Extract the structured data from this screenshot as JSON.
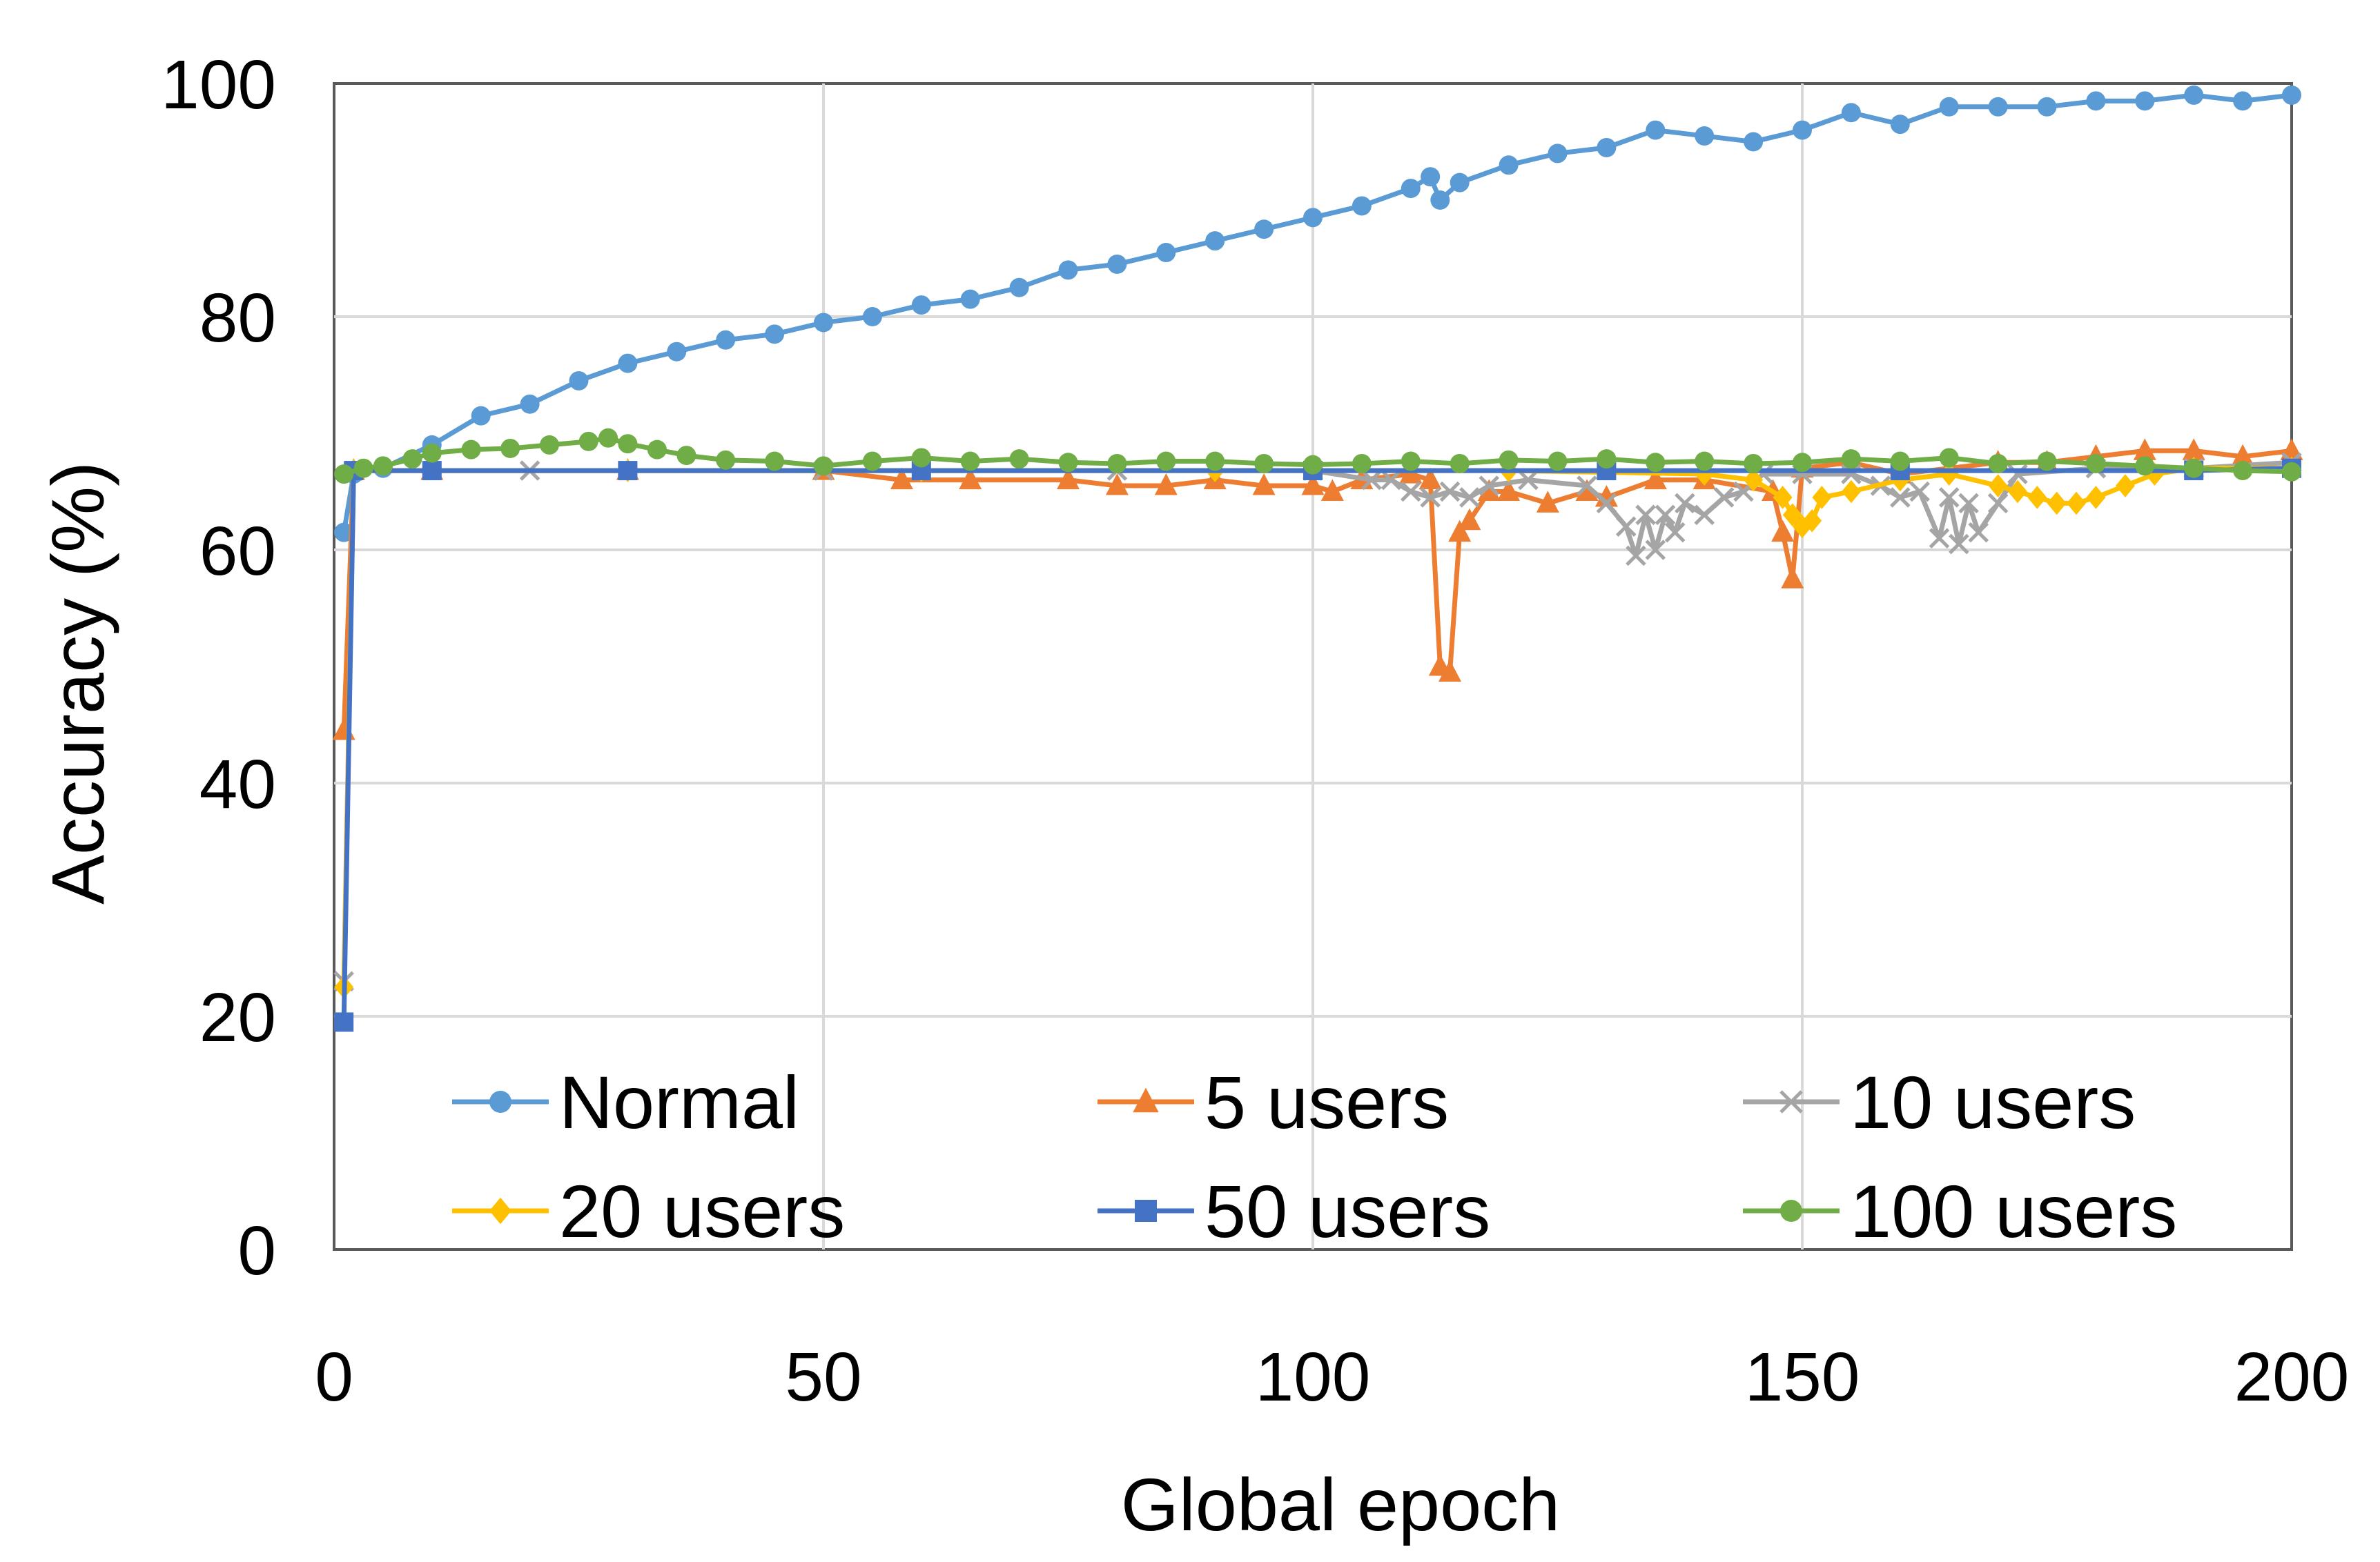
{
  "chart_data": {
    "type": "line",
    "title": "",
    "xlabel": "Global epoch",
    "ylabel": "Accuracy (%)",
    "xlim": [
      0,
      200
    ],
    "ylim": [
      0,
      100
    ],
    "x_ticks": [
      0,
      50,
      100,
      150,
      200
    ],
    "y_ticks": [
      0,
      20,
      40,
      60,
      80,
      100
    ],
    "grid": true,
    "legend_position": "bottom, inside plot area, 3 columns",
    "series": [
      {
        "name": "Normal",
        "color": "#5B9BD5",
        "marker": "circle",
        "points": [
          [
            1,
            61.5
          ],
          [
            2,
            66.5
          ],
          [
            5,
            67
          ],
          [
            10,
            69
          ],
          [
            15,
            71.5
          ],
          [
            20,
            72.5
          ],
          [
            25,
            74.5
          ],
          [
            30,
            76
          ],
          [
            35,
            77
          ],
          [
            40,
            78
          ],
          [
            45,
            78.5
          ],
          [
            50,
            79.5
          ],
          [
            55,
            80
          ],
          [
            60,
            81
          ],
          [
            65,
            81.5
          ],
          [
            70,
            82.5
          ],
          [
            75,
            84
          ],
          [
            80,
            84.5
          ],
          [
            85,
            85.5
          ],
          [
            90,
            86.5
          ],
          [
            95,
            87.5
          ],
          [
            100,
            88.5
          ],
          [
            105,
            89.5
          ],
          [
            110,
            91
          ],
          [
            112,
            92
          ],
          [
            113,
            90
          ],
          [
            115,
            91.5
          ],
          [
            120,
            93
          ],
          [
            125,
            94
          ],
          [
            130,
            94.5
          ],
          [
            135,
            96
          ],
          [
            140,
            95.5
          ],
          [
            145,
            95
          ],
          [
            150,
            96
          ],
          [
            155,
            97.5
          ],
          [
            160,
            96.5
          ],
          [
            165,
            98
          ],
          [
            170,
            98
          ],
          [
            175,
            98
          ],
          [
            180,
            98.5
          ],
          [
            185,
            98.5
          ],
          [
            190,
            99
          ],
          [
            195,
            98.5
          ],
          [
            200,
            99
          ]
        ]
      },
      {
        "name": "5 users",
        "color": "#ED7D31",
        "marker": "triangle",
        "points": [
          [
            1,
            44.5
          ],
          [
            2,
            66.8
          ],
          [
            10,
            66.8
          ],
          [
            30,
            66.8
          ],
          [
            50,
            66.8
          ],
          [
            58,
            66
          ],
          [
            65,
            66
          ],
          [
            75,
            66
          ],
          [
            80,
            65.5
          ],
          [
            85,
            65.5
          ],
          [
            90,
            66
          ],
          [
            95,
            65.5
          ],
          [
            100,
            65.5
          ],
          [
            102,
            65
          ],
          [
            105,
            66
          ],
          [
            110,
            66.5
          ],
          [
            112,
            66
          ],
          [
            113,
            50
          ],
          [
            114,
            49.5
          ],
          [
            115,
            61.5
          ],
          [
            116,
            62.5
          ],
          [
            118,
            65
          ],
          [
            120,
            65
          ],
          [
            124,
            64
          ],
          [
            128,
            65
          ],
          [
            130,
            64.5
          ],
          [
            135,
            66
          ],
          [
            140,
            66
          ],
          [
            147,
            65
          ],
          [
            148,
            61.5
          ],
          [
            149,
            57.5
          ],
          [
            150,
            67
          ],
          [
            155,
            67.5
          ],
          [
            160,
            66.5
          ],
          [
            165,
            67
          ],
          [
            170,
            67.5
          ],
          [
            175,
            67.5
          ],
          [
            180,
            68
          ],
          [
            185,
            68.5
          ],
          [
            190,
            68.5
          ],
          [
            195,
            68
          ],
          [
            200,
            68.5
          ]
        ]
      },
      {
        "name": "10 users",
        "color": "#A5A5A5",
        "marker": "x",
        "points": [
          [
            1,
            23
          ],
          [
            2,
            66.8
          ],
          [
            20,
            66.8
          ],
          [
            50,
            66.8
          ],
          [
            80,
            66.8
          ],
          [
            100,
            66.8
          ],
          [
            106,
            66
          ],
          [
            108,
            66
          ],
          [
            110,
            65
          ],
          [
            112,
            64.5
          ],
          [
            114,
            65
          ],
          [
            116,
            64.5
          ],
          [
            118,
            65.5
          ],
          [
            122,
            66
          ],
          [
            128,
            65.5
          ],
          [
            130,
            64
          ],
          [
            132,
            62
          ],
          [
            133,
            59.5
          ],
          [
            134,
            63
          ],
          [
            135,
            60
          ],
          [
            136,
            63
          ],
          [
            137,
            61.5
          ],
          [
            138,
            64
          ],
          [
            140,
            63
          ],
          [
            142,
            64.5
          ],
          [
            144,
            65
          ],
          [
            146,
            66.5
          ],
          [
            150,
            66.5
          ],
          [
            155,
            66.5
          ],
          [
            158,
            65.5
          ],
          [
            160,
            64.5
          ],
          [
            162,
            65
          ],
          [
            164,
            61
          ],
          [
            165,
            64.5
          ],
          [
            166,
            60.5
          ],
          [
            167,
            64
          ],
          [
            168,
            61.5
          ],
          [
            170,
            64
          ],
          [
            172,
            66.5
          ],
          [
            180,
            67
          ],
          [
            190,
            67
          ],
          [
            200,
            67.5
          ]
        ]
      },
      {
        "name": "20 users",
        "color": "#FFC000",
        "marker": "diamond",
        "points": [
          [
            1,
            22.5
          ],
          [
            2,
            66.8
          ],
          [
            30,
            66.8
          ],
          [
            60,
            66.8
          ],
          [
            90,
            66.8
          ],
          [
            120,
            66.8
          ],
          [
            140,
            66.5
          ],
          [
            145,
            66
          ],
          [
            148,
            64.5
          ],
          [
            149,
            63
          ],
          [
            150,
            62
          ],
          [
            151,
            62.5
          ],
          [
            152,
            64.5
          ],
          [
            155,
            65
          ],
          [
            160,
            66
          ],
          [
            165,
            66.5
          ],
          [
            170,
            65.5
          ],
          [
            172,
            65
          ],
          [
            174,
            64.5
          ],
          [
            176,
            64
          ],
          [
            178,
            64
          ],
          [
            180,
            64.5
          ],
          [
            183,
            65.5
          ],
          [
            186,
            66.5
          ],
          [
            190,
            67
          ],
          [
            200,
            67
          ]
        ]
      },
      {
        "name": "50 users",
        "color": "#4472C4",
        "marker": "square",
        "points": [
          [
            1,
            19.5
          ],
          [
            2,
            66.8
          ],
          [
            10,
            66.8
          ],
          [
            30,
            66.8
          ],
          [
            60,
            66.8
          ],
          [
            100,
            66.8
          ],
          [
            130,
            66.8
          ],
          [
            160,
            66.8
          ],
          [
            190,
            66.8
          ],
          [
            200,
            67
          ]
        ]
      },
      {
        "name": "100 users",
        "color": "#70AD47",
        "marker": "circle",
        "points": [
          [
            1,
            66.5
          ],
          [
            3,
            67
          ],
          [
            5,
            67.2
          ],
          [
            8,
            67.8
          ],
          [
            10,
            68.3
          ],
          [
            14,
            68.6
          ],
          [
            18,
            68.7
          ],
          [
            22,
            69
          ],
          [
            26,
            69.3
          ],
          [
            28,
            69.6
          ],
          [
            30,
            69.1
          ],
          [
            33,
            68.6
          ],
          [
            36,
            68.1
          ],
          [
            40,
            67.7
          ],
          [
            45,
            67.6
          ],
          [
            50,
            67.2
          ],
          [
            55,
            67.6
          ],
          [
            60,
            67.9
          ],
          [
            65,
            67.6
          ],
          [
            70,
            67.8
          ],
          [
            75,
            67.5
          ],
          [
            80,
            67.4
          ],
          [
            85,
            67.6
          ],
          [
            90,
            67.6
          ],
          [
            95,
            67.4
          ],
          [
            100,
            67.3
          ],
          [
            105,
            67.4
          ],
          [
            110,
            67.6
          ],
          [
            115,
            67.4
          ],
          [
            120,
            67.7
          ],
          [
            125,
            67.6
          ],
          [
            130,
            67.8
          ],
          [
            135,
            67.5
          ],
          [
            140,
            67.6
          ],
          [
            145,
            67.4
          ],
          [
            150,
            67.5
          ],
          [
            155,
            67.8
          ],
          [
            160,
            67.6
          ],
          [
            165,
            67.9
          ],
          [
            170,
            67.4
          ],
          [
            175,
            67.6
          ],
          [
            180,
            67.4
          ],
          [
            185,
            67.2
          ],
          [
            190,
            67
          ],
          [
            195,
            66.8
          ],
          [
            200,
            66.7
          ]
        ]
      }
    ]
  }
}
